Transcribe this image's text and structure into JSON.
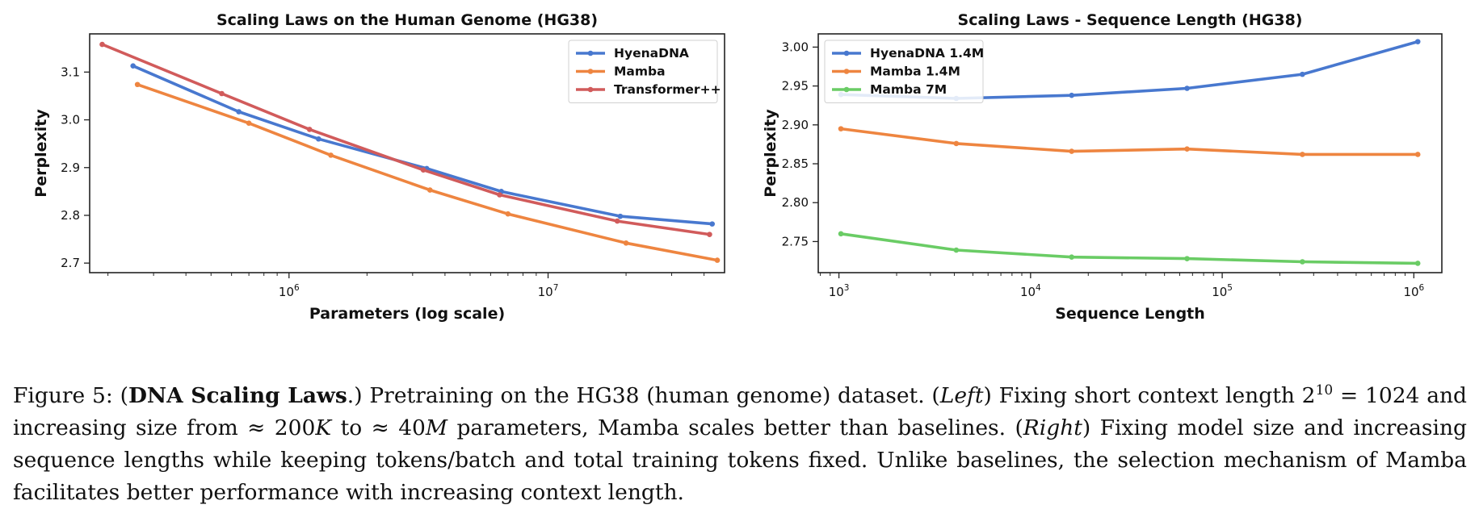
{
  "chart_data": [
    {
      "type": "line",
      "title": "Scaling Laws on the Human Genome (HG38)",
      "xlabel": "Parameters (log scale)",
      "ylabel": "Perplexity",
      "xscale": "log",
      "xlim": [
        170000,
        48000000
      ],
      "ylim": [
        2.68,
        3.18
      ],
      "xticks": [
        {
          "value": 1000000,
          "base": "10",
          "exp": "6"
        },
        {
          "value": 10000000,
          "base": "10",
          "exp": "7"
        }
      ],
      "yticks": [
        {
          "value": 2.7,
          "label": "2.7"
        },
        {
          "value": 2.8,
          "label": "2.8"
        },
        {
          "value": 2.9,
          "label": "2.9"
        },
        {
          "value": 3.0,
          "label": "3.0"
        },
        {
          "value": 3.1,
          "label": "3.1"
        }
      ],
      "grid": false,
      "legend": "top-right",
      "series": [
        {
          "name": "HyenaDNA",
          "color": "#4878cf",
          "x": [
            250000,
            640000,
            1300000,
            3400000,
            6600000,
            19000000,
            43000000
          ],
          "y": [
            3.113,
            3.017,
            2.96,
            2.898,
            2.85,
            2.798,
            2.782
          ]
        },
        {
          "name": "Mamba",
          "color": "#ee8540",
          "x": [
            260000,
            700000,
            1450000,
            3500000,
            7000000,
            20000000,
            45000000
          ],
          "y": [
            3.074,
            2.993,
            2.926,
            2.853,
            2.803,
            2.742,
            2.706
          ]
        },
        {
          "name": "Transformer++",
          "color": "#d15b5b",
          "x": [
            190000,
            550000,
            1200000,
            3300000,
            6500000,
            18500000,
            42000000
          ],
          "y": [
            3.158,
            3.055,
            2.98,
            2.895,
            2.843,
            2.788,
            2.76
          ]
        }
      ]
    },
    {
      "type": "line",
      "title": "Scaling Laws - Sequence Length (HG38)",
      "xlabel": "Sequence Length",
      "ylabel": "Perplexity",
      "xscale": "log",
      "xlim": [
        780,
        1400000
      ],
      "ylim": [
        2.71,
        3.017
      ],
      "xticks": [
        {
          "value": 1000,
          "base": "10",
          "exp": "3"
        },
        {
          "value": 10000,
          "base": "10",
          "exp": "4"
        },
        {
          "value": 100000,
          "base": "10",
          "exp": "5"
        },
        {
          "value": 1000000,
          "base": "10",
          "exp": "6"
        }
      ],
      "yticks": [
        {
          "value": 2.75,
          "label": "2.75"
        },
        {
          "value": 2.8,
          "label": "2.80"
        },
        {
          "value": 2.85,
          "label": "2.85"
        },
        {
          "value": 2.9,
          "label": "2.90"
        },
        {
          "value": 2.95,
          "label": "2.95"
        },
        {
          "value": 3.0,
          "label": "3.00"
        }
      ],
      "grid": false,
      "legend": "top-left",
      "series": [
        {
          "name": "HyenaDNA 1.4M",
          "color": "#4878cf",
          "x": [
            1024,
            4096,
            16384,
            65536,
            262144,
            1048576
          ],
          "y": [
            2.939,
            2.934,
            2.938,
            2.947,
            2.965,
            3.007
          ]
        },
        {
          "name": "Mamba 1.4M",
          "color": "#ee8540",
          "x": [
            1024,
            4096,
            16384,
            65536,
            262144,
            1048576
          ],
          "y": [
            2.895,
            2.876,
            2.866,
            2.869,
            2.862,
            2.862
          ]
        },
        {
          "name": "Mamba 7M",
          "color": "#6acc65",
          "x": [
            1024,
            4096,
            16384,
            65536,
            262144,
            1048576
          ],
          "y": [
            2.76,
            2.739,
            2.73,
            2.728,
            2.724,
            2.722
          ]
        }
      ]
    }
  ],
  "caption": {
    "prefix": "Figure 5: (",
    "bold": "DNA Scaling Laws",
    "after_bold": ".) Pretraining on the HG38 (human genome) dataset. (",
    "left_word": "Left",
    "text_a": ") Fixing short context length 2",
    "sup": "10",
    "text_b": " = 1024 and increasing size from ≈ 200",
    "k": "K",
    "text_c": " to ≈ 40",
    "m": "M",
    "text_d": " parameters, Mamba scales better than baselines. (",
    "right_word": "Right",
    "text_e": ") Fixing model size and increasing sequence lengths while keeping tokens/batch and total training tokens fixed. Unlike baselines, the selection mechanism of Mamba facilitates better performance with increasing context length."
  }
}
